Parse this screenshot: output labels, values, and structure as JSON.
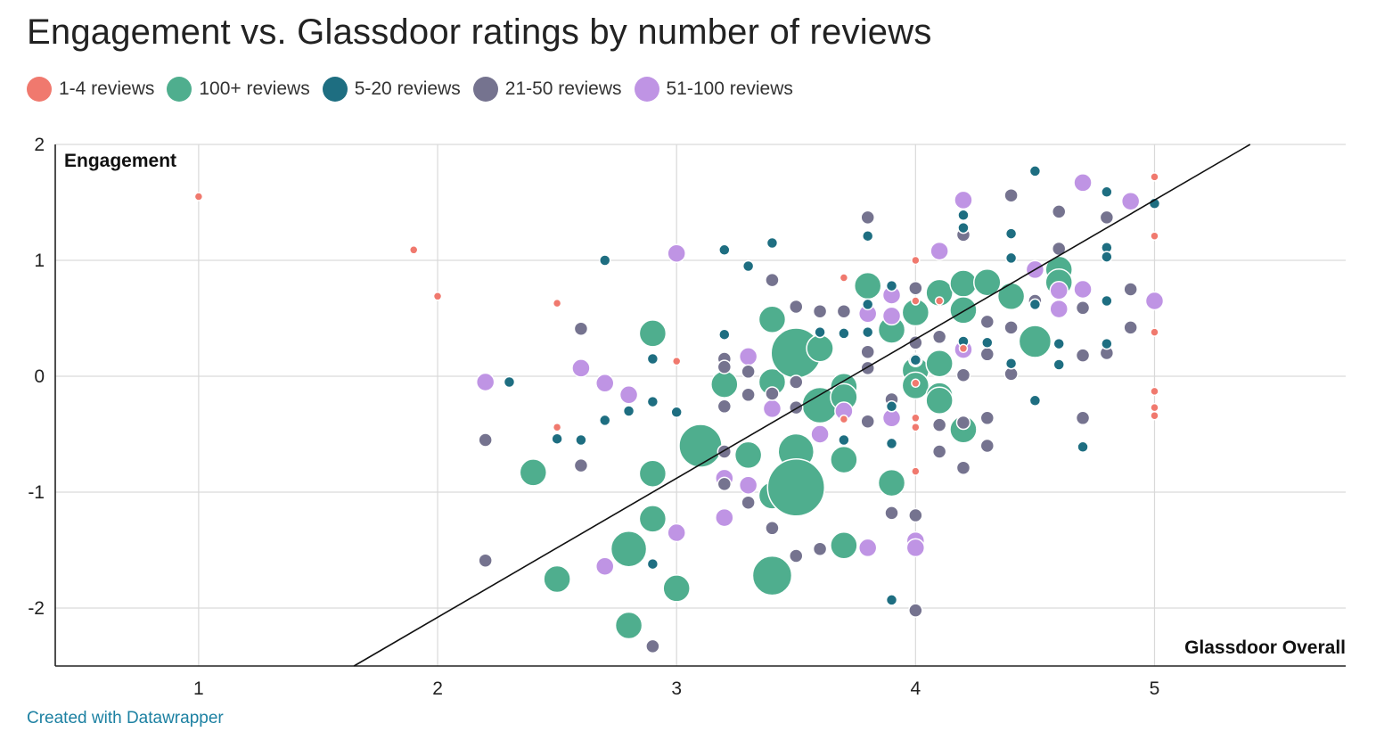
{
  "chart_data": {
    "type": "scatter",
    "title": "Engagement vs. Glassdoor ratings by number of reviews",
    "xlabel": "Glassdoor Overall",
    "ylabel": "Engagement",
    "xlim": [
      0.4,
      5.8
    ],
    "ylim": [
      -2.5,
      2
    ],
    "xticks": [
      1,
      2,
      3,
      4,
      5
    ],
    "yticks": [
      2,
      1,
      0,
      -1,
      -2
    ],
    "grid": true,
    "legend_position": "top",
    "trend_line": {
      "x": [
        1.65,
        5.4
      ],
      "y": [
        -2.5,
        2
      ]
    },
    "series": [
      {
        "name": "1-4 reviews",
        "color": "#f0796e",
        "size": 1,
        "points": [
          [
            1,
            1.55
          ],
          [
            1.9,
            1.09
          ],
          [
            2,
            0.69
          ],
          [
            2.5,
            0.63
          ],
          [
            2.5,
            -0.44
          ],
          [
            3,
            0.13
          ],
          [
            3.7,
            0.85
          ],
          [
            3.7,
            -0.37
          ],
          [
            4,
            1
          ],
          [
            4,
            0.65
          ],
          [
            4,
            -0.06
          ],
          [
            4,
            -0.36
          ],
          [
            4,
            -0.44
          ],
          [
            4,
            -0.82
          ],
          [
            4.1,
            0.65
          ],
          [
            4.2,
            0.24
          ],
          [
            5,
            1.72
          ],
          [
            5,
            1.21
          ],
          [
            5,
            0.38
          ],
          [
            5,
            -0.13
          ],
          [
            5,
            -0.27
          ],
          [
            5,
            -0.34
          ]
        ]
      },
      {
        "name": "100+ reviews",
        "color": "#4fae8e",
        "size": 5,
        "points": [
          [
            2.4,
            -0.83
          ],
          [
            2.5,
            -1.75
          ],
          [
            2.8,
            -1.49
          ],
          [
            2.8,
            -2.15
          ],
          [
            2.9,
            0.37
          ],
          [
            2.9,
            -0.84
          ],
          [
            2.9,
            -1.23
          ],
          [
            3,
            -1.83
          ],
          [
            3.1,
            -0.6
          ],
          [
            3.2,
            -0.07
          ],
          [
            3.3,
            -0.68
          ],
          [
            3.4,
            0.49
          ],
          [
            3.4,
            -0.05
          ],
          [
            3.4,
            -1.03
          ],
          [
            3.4,
            -1.72
          ],
          [
            3.5,
            0.2
          ],
          [
            3.5,
            -0.65
          ],
          [
            3.5,
            -0.96
          ],
          [
            3.6,
            0.24
          ],
          [
            3.6,
            -0.25
          ],
          [
            3.7,
            -0.09
          ],
          [
            3.7,
            -0.18
          ],
          [
            3.7,
            -0.72
          ],
          [
            3.7,
            -1.46
          ],
          [
            3.8,
            0.78
          ],
          [
            3.9,
            0.4
          ],
          [
            3.9,
            -0.92
          ],
          [
            4,
            0.55
          ],
          [
            4,
            0.05
          ],
          [
            4,
            -0.08
          ],
          [
            4.1,
            0.72
          ],
          [
            4.1,
            0.11
          ],
          [
            4.1,
            -0.17
          ],
          [
            4.1,
            -0.21
          ],
          [
            4.2,
            0.8
          ],
          [
            4.2,
            0.57
          ],
          [
            4.2,
            -0.46
          ],
          [
            4.3,
            0.81
          ],
          [
            4.4,
            0.69
          ],
          [
            4.5,
            0.3
          ],
          [
            4.6,
            0.92
          ],
          [
            4.6,
            0.81
          ]
        ]
      },
      {
        "name": "5-20 reviews",
        "color": "#1e6e81",
        "size": 2,
        "points": [
          [
            2.3,
            -0.05
          ],
          [
            2.5,
            -0.54
          ],
          [
            2.6,
            -0.55
          ],
          [
            2.7,
            1
          ],
          [
            2.7,
            -0.38
          ],
          [
            2.8,
            -0.3
          ],
          [
            2.9,
            0.15
          ],
          [
            2.9,
            -0.22
          ],
          [
            2.9,
            -1.62
          ],
          [
            3,
            -0.31
          ],
          [
            3.2,
            1.09
          ],
          [
            3.2,
            0.36
          ],
          [
            3.3,
            0.95
          ],
          [
            3.4,
            1.15
          ],
          [
            3.6,
            0.38
          ],
          [
            3.7,
            0.37
          ],
          [
            3.7,
            -0.55
          ],
          [
            3.8,
            1.21
          ],
          [
            3.8,
            0.62
          ],
          [
            3.8,
            0.38
          ],
          [
            3.9,
            0.78
          ],
          [
            3.9,
            -0.26
          ],
          [
            3.9,
            -0.58
          ],
          [
            3.9,
            -1.93
          ],
          [
            4,
            0.14
          ],
          [
            4.2,
            1.28
          ],
          [
            4.2,
            1.39
          ],
          [
            4.2,
            0.3
          ],
          [
            4.3,
            0.29
          ],
          [
            4.4,
            1.23
          ],
          [
            4.4,
            1.02
          ],
          [
            4.4,
            0.11
          ],
          [
            4.5,
            1.77
          ],
          [
            4.5,
            0.62
          ],
          [
            4.5,
            -0.21
          ],
          [
            4.6,
            0.28
          ],
          [
            4.6,
            0.1
          ],
          [
            4.7,
            -0.61
          ],
          [
            4.8,
            1.59
          ],
          [
            4.8,
            1.11
          ],
          [
            4.8,
            1.03
          ],
          [
            4.8,
            0.65
          ],
          [
            4.8,
            0.28
          ],
          [
            5,
            1.49
          ]
        ]
      },
      {
        "name": "21-50 reviews",
        "color": "#75738f",
        "size": 3,
        "points": [
          [
            2.2,
            -0.55
          ],
          [
            2.2,
            -1.59
          ],
          [
            2.6,
            0.41
          ],
          [
            2.6,
            -0.77
          ],
          [
            2.9,
            -2.33
          ],
          [
            3.2,
            0.15
          ],
          [
            3.2,
            0.08
          ],
          [
            3.2,
            -0.26
          ],
          [
            3.2,
            -0.65
          ],
          [
            3.2,
            -0.93
          ],
          [
            3.3,
            0.04
          ],
          [
            3.3,
            -0.16
          ],
          [
            3.3,
            -1.09
          ],
          [
            3.4,
            0.83
          ],
          [
            3.4,
            -0.15
          ],
          [
            3.4,
            -1.31
          ],
          [
            3.5,
            0.6
          ],
          [
            3.5,
            -0.05
          ],
          [
            3.5,
            -0.27
          ],
          [
            3.5,
            -1.55
          ],
          [
            3.6,
            0.56
          ],
          [
            3.6,
            -1.49
          ],
          [
            3.7,
            0.56
          ],
          [
            3.8,
            0.21
          ],
          [
            3.8,
            0.07
          ],
          [
            3.8,
            -0.39
          ],
          [
            3.8,
            1.37
          ],
          [
            3.9,
            -0.2
          ],
          [
            3.9,
            -1.18
          ],
          [
            4,
            0.76
          ],
          [
            4,
            0.29
          ],
          [
            4,
            0.14
          ],
          [
            4,
            -1.2
          ],
          [
            4,
            -2.02
          ],
          [
            4.1,
            0.34
          ],
          [
            4.1,
            -0.42
          ],
          [
            4.1,
            -0.65
          ],
          [
            4.2,
            1.22
          ],
          [
            4.2,
            0.01
          ],
          [
            4.2,
            -0.4
          ],
          [
            4.2,
            -0.79
          ],
          [
            4.3,
            0.47
          ],
          [
            4.3,
            0.19
          ],
          [
            4.3,
            -0.36
          ],
          [
            4.3,
            -0.6
          ],
          [
            4.4,
            1.56
          ],
          [
            4.4,
            0.42
          ],
          [
            4.4,
            0.02
          ],
          [
            4.5,
            0.65
          ],
          [
            4.6,
            1.42
          ],
          [
            4.6,
            1.1
          ],
          [
            4.7,
            0.59
          ],
          [
            4.7,
            0.18
          ],
          [
            4.7,
            -0.36
          ],
          [
            4.8,
            1.37
          ],
          [
            4.8,
            0.2
          ],
          [
            4.9,
            0.75
          ],
          [
            4.9,
            0.42
          ]
        ]
      },
      {
        "name": "51-100 reviews",
        "color": "#bf94e4",
        "size": 4,
        "points": [
          [
            2.2,
            -0.05
          ],
          [
            2.6,
            0.07
          ],
          [
            2.7,
            -0.06
          ],
          [
            2.7,
            -1.64
          ],
          [
            2.8,
            -0.16
          ],
          [
            3,
            1.06
          ],
          [
            3,
            -1.35
          ],
          [
            3.2,
            -0.88
          ],
          [
            3.2,
            -1.22
          ],
          [
            3.3,
            0.17
          ],
          [
            3.3,
            -0.94
          ],
          [
            3.4,
            -0.28
          ],
          [
            3.6,
            -0.5
          ],
          [
            3.7,
            -0.3
          ],
          [
            3.8,
            0.54
          ],
          [
            3.8,
            -1.48
          ],
          [
            3.9,
            0.7
          ],
          [
            3.9,
            0.52
          ],
          [
            3.9,
            -0.36
          ],
          [
            4,
            -1.42
          ],
          [
            4,
            -1.48
          ],
          [
            4.1,
            1.08
          ],
          [
            4.2,
            0.23
          ],
          [
            4.2,
            1.52
          ],
          [
            4.5,
            0.92
          ],
          [
            4.6,
            0.74
          ],
          [
            4.6,
            0.58
          ],
          [
            4.7,
            1.67
          ],
          [
            4.7,
            0.75
          ],
          [
            4.9,
            1.51
          ],
          [
            5,
            0.65
          ]
        ]
      }
    ]
  },
  "footer": {
    "credit": "Created with Datawrapper"
  }
}
